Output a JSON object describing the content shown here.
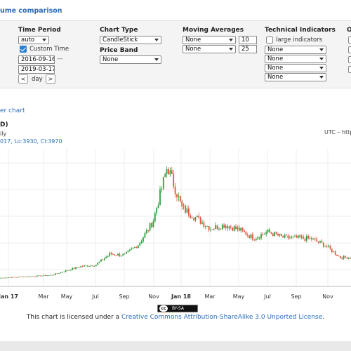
{
  "header": {
    "title": "ume comparison"
  },
  "time_period": {
    "label": "Time Period",
    "select": "auto",
    "custom_time_label": "Custom Time",
    "custom_time_checked": true,
    "start": "2016-09-16",
    "dash": "—",
    "end": "2019-03-17",
    "prev": "<",
    "unit": "day",
    "next": ">"
  },
  "chart_type": {
    "label": "Chart Type",
    "select": "CandleStick"
  },
  "price_band": {
    "label": "Price Band",
    "select": "None"
  },
  "moving_averages": {
    "label": "Moving Averages",
    "rows": [
      {
        "select": "None",
        "period": "10"
      },
      {
        "select": "None",
        "period": "25"
      }
    ]
  },
  "technical_indicators": {
    "label": "Technical Indicators",
    "large_label": "large indicators",
    "selects": [
      "None",
      "None",
      "None",
      "None"
    ]
  },
  "other": {
    "label": "O"
  },
  "chart_link": "er chart",
  "chart_header": {
    "title_fragment": "D)",
    "interval_fragment": "ily",
    "tz": "UTC – http",
    "ohlc": "017, Lo:3930, Cl:3970"
  },
  "chart_data": {
    "type": "line",
    "x_tick_labels": [
      "Jan 17",
      "Mar",
      "May",
      "Jul",
      "Sep",
      "Nov",
      "Jan 18",
      "Mar",
      "May",
      "Jul",
      "Sep",
      "Nov"
    ],
    "x_tick_bold": [
      true,
      false,
      false,
      false,
      false,
      false,
      true,
      false,
      false,
      false,
      false,
      false
    ],
    "up_color": "#2e9e3e",
    "down_color": "#e0573a",
    "grid": true,
    "x": [
      "2016-11",
      "2016-12",
      "2017-01",
      "2017-02",
      "2017-03",
      "2017-04",
      "2017-05",
      "2017-06",
      "2017-07",
      "2017-08",
      "2017-09",
      "2017-10",
      "2017-11",
      "2017-12",
      "2018-01",
      "2018-02",
      "2018-03",
      "2018-04",
      "2018-05",
      "2018-06",
      "2018-07",
      "2018-08",
      "2018-09",
      "2018-10",
      "2018-11",
      "2018-12"
    ],
    "values": [
      700,
      780,
      900,
      1000,
      1100,
      1250,
      1900,
      2500,
      2700,
      4300,
      4100,
      5700,
      9000,
      17000,
      11000,
      9500,
      8000,
      8500,
      7800,
      6600,
      7500,
      6700,
      6600,
      6500,
      5500,
      3800
    ]
  },
  "license": {
    "badge_cc": "cc",
    "badge_by": "BY-SA",
    "prefix": "This chart is licensed under a ",
    "link": "Creative Commons Attribution-ShareAlike 3.0 Unported License",
    "suffix": "."
  }
}
